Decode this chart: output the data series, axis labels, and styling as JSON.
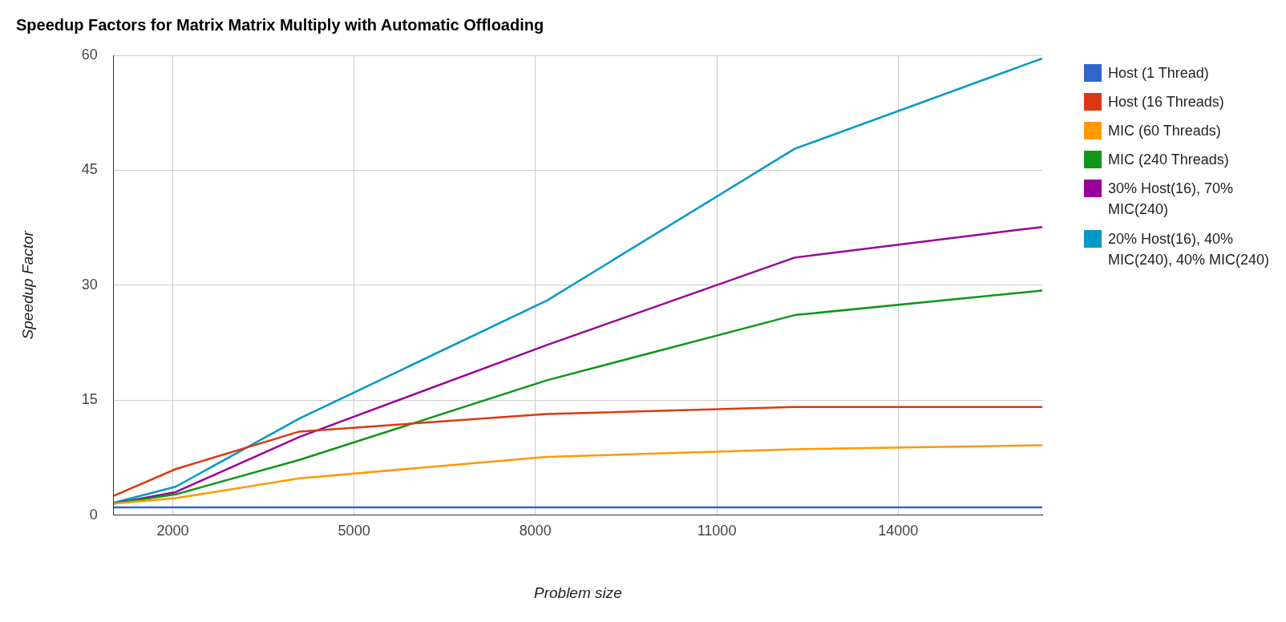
{
  "chart_data": {
    "type": "line",
    "title": "Speedup Factors for Matrix Matrix Multiply with Automatic Offloading",
    "xlabel": "Problem size",
    "ylabel": "Speedup Factor",
    "x": [
      1024,
      2048,
      4096,
      8192,
      12288,
      16384
    ],
    "xlim": [
      1024,
      16384
    ],
    "xticks": [
      2000,
      5000,
      8000,
      11000,
      14000
    ],
    "ylim": [
      0,
      60
    ],
    "yticks": [
      0,
      15,
      30,
      45,
      60
    ],
    "grid": true,
    "legend": "right",
    "marker": "none",
    "line_style": "solid",
    "series": [
      {
        "name": "Host (1 Thread)",
        "color": "#3366cc",
        "values": [
          1,
          1,
          1,
          1,
          1,
          1
        ]
      },
      {
        "name": "Host (16 Threads)",
        "color": "#dc3912",
        "values": [
          2.5,
          6,
          10.9,
          13.2,
          14.1,
          14.1
        ]
      },
      {
        "name": "MIC (60 Threads)",
        "color": "#ff9900",
        "values": [
          1.5,
          2.2,
          4.8,
          7.6,
          8.6,
          9.1
        ]
      },
      {
        "name": "MIC (240 Threads)",
        "color": "#109618",
        "values": [
          1.5,
          2.7,
          7.2,
          17.6,
          26.1,
          29.3
        ]
      },
      {
        "name": "30% Host(16), 70% MIC(240)",
        "color": "#990099",
        "values": [
          1.5,
          3,
          10.2,
          22.2,
          33.6,
          37.6
        ]
      },
      {
        "name": "20% Host(16), 40% MIC(240), 40% MIC(240)",
        "color": "#0099c6",
        "values": [
          1.6,
          3.7,
          12.6,
          28,
          47.8,
          59.6
        ]
      }
    ]
  }
}
